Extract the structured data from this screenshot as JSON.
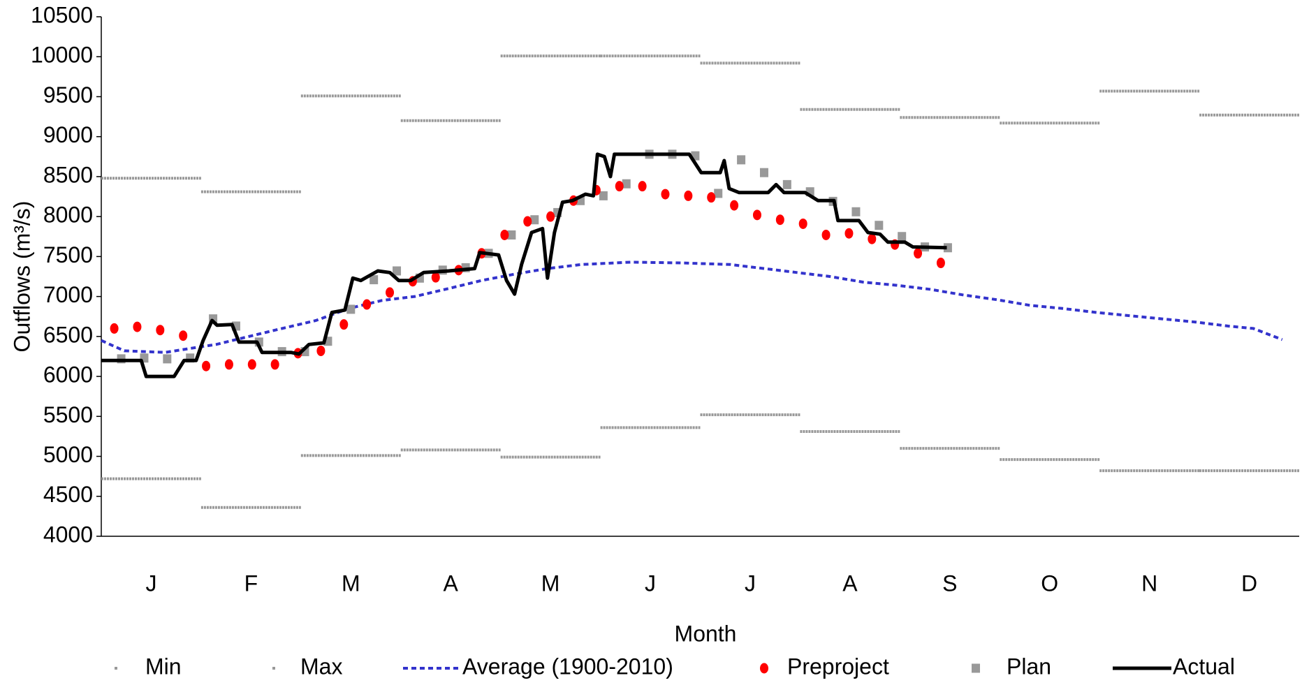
{
  "chart_data": {
    "type": "line",
    "x_label": "Month",
    "y_label": "Outflows (m³/s)",
    "xlim": [
      0,
      12
    ],
    "xticks": [
      {
        "value": 0.5,
        "label": "J"
      },
      {
        "value": 1.5,
        "label": "F"
      },
      {
        "value": 2.5,
        "label": "M"
      },
      {
        "value": 3.5,
        "label": "A"
      },
      {
        "value": 4.5,
        "label": "M"
      },
      {
        "value": 5.5,
        "label": "J"
      },
      {
        "value": 6.5,
        "label": "J"
      },
      {
        "value": 7.5,
        "label": "A"
      },
      {
        "value": 8.5,
        "label": "S"
      },
      {
        "value": 9.5,
        "label": "O"
      },
      {
        "value": 10.5,
        "label": "N"
      },
      {
        "value": 11.5,
        "label": "D"
      }
    ],
    "ylim": [
      4000,
      10500
    ],
    "yticks": [
      4000,
      4500,
      5000,
      5500,
      6000,
      6500,
      7000,
      7500,
      8000,
      8500,
      9000,
      9500,
      10000,
      10500
    ],
    "grid": false,
    "legend": "bottom",
    "series": [
      {
        "name": "Min",
        "color": "#999999",
        "style": "step",
        "x": [
          0,
          1,
          2,
          3,
          4,
          5,
          6,
          7,
          8,
          9,
          10,
          11
        ],
        "values": [
          4720,
          4360,
          5010,
          5080,
          4990,
          5360,
          5520,
          5310,
          5100,
          4960,
          4820,
          4820
        ]
      },
      {
        "name": "Max",
        "color": "#999999",
        "style": "step",
        "x": [
          0,
          1,
          2,
          3,
          4,
          5,
          6,
          7,
          8,
          9,
          10,
          11
        ],
        "values": [
          8480,
          8310,
          9510,
          9200,
          10010,
          10010,
          9920,
          9340,
          9240,
          9170,
          9570,
          9270
        ]
      },
      {
        "name": "Average (1900-2010)",
        "color": "#3333cc",
        "style": "dotted",
        "x": [
          0,
          0.23,
          0.64,
          0.89,
          1.15,
          1.48,
          1.81,
          2.15,
          2.48,
          2.81,
          3.14,
          3.48,
          3.81,
          4.14,
          4.47,
          4.81,
          5.31,
          5.8,
          6.3,
          6.64,
          6.97,
          7.3,
          7.63,
          7.97,
          8.3,
          8.63,
          8.97,
          9.3,
          9.63,
          9.97,
          10.3,
          10.63,
          10.96,
          11.29,
          11.54,
          11.83
        ],
        "values": [
          6450,
          6320,
          6300,
          6350,
          6400,
          6500,
          6600,
          6700,
          6850,
          6950,
          7000,
          7100,
          7200,
          7280,
          7350,
          7400,
          7430,
          7420,
          7400,
          7350,
          7300,
          7250,
          7180,
          7140,
          7090,
          7020,
          6960,
          6890,
          6850,
          6800,
          6760,
          6720,
          6680,
          6630,
          6600,
          6460
        ]
      },
      {
        "name": "Preproject",
        "color": "#ff0000",
        "style": "dot",
        "x": [
          0.13,
          0.36,
          0.59,
          0.82,
          1.05,
          1.28,
          1.51,
          1.74,
          1.97,
          2.2,
          2.43,
          2.66,
          2.89,
          3.12,
          3.35,
          3.58,
          3.81,
          4.04,
          4.27,
          4.5,
          4.73,
          4.96,
          5.19,
          5.42,
          5.65,
          5.88,
          6.11,
          6.34,
          6.57,
          6.8,
          7.03,
          7.26,
          7.49,
          7.72,
          7.95,
          8.18,
          8.41
        ],
        "values": [
          6600,
          6620,
          6580,
          6510,
          6130,
          6150,
          6150,
          6150,
          6290,
          6320,
          6650,
          6900,
          7050,
          7190,
          7240,
          7330,
          7540,
          7770,
          7940,
          8000,
          8200,
          8330,
          8380,
          8380,
          8280,
          8260,
          8240,
          8140,
          8020,
          7960,
          7910,
          7770,
          7790,
          7720,
          7650,
          7540,
          7420
        ]
      },
      {
        "name": "Plan",
        "color": "#999999",
        "style": "square",
        "x": [
          0.2,
          0.43,
          0.66,
          0.89,
          1.12,
          1.35,
          1.58,
          1.81,
          2.04,
          2.27,
          2.5,
          2.73,
          2.96,
          3.19,
          3.42,
          3.65,
          3.88,
          4.11,
          4.34,
          4.57,
          4.8,
          5.03,
          5.26,
          5.49,
          5.72,
          5.95,
          6.18,
          6.41,
          6.64,
          6.87,
          7.1,
          7.33,
          7.56,
          7.79,
          8.02,
          8.25,
          8.48
        ],
        "values": [
          6220,
          6230,
          6220,
          6230,
          6720,
          6630,
          6430,
          6310,
          6310,
          6440,
          6840,
          7210,
          7320,
          7230,
          7330,
          7360,
          7540,
          7770,
          7960,
          8050,
          8200,
          8260,
          8410,
          8780,
          8780,
          8760,
          8290,
          8710,
          8550,
          8400,
          8310,
          8190,
          8060,
          7890,
          7750,
          7620,
          7610
        ]
      },
      {
        "name": "Actual",
        "color": "#000000",
        "style": "line",
        "x": [
          0,
          0.4,
          0.45,
          0.73,
          0.83,
          0.95,
          1.02,
          1.11,
          1.16,
          1.31,
          1.38,
          1.56,
          1.61,
          1.9,
          1.98,
          2.08,
          2.23,
          2.31,
          2.44,
          2.52,
          2.6,
          2.77,
          2.89,
          2.98,
          3.1,
          3.23,
          3.48,
          3.74,
          3.79,
          3.98,
          4.06,
          4.14,
          4.21,
          4.31,
          4.42,
          4.47,
          4.54,
          4.62,
          4.72,
          4.85,
          4.93,
          4.97,
          5.04,
          5.1,
          5.14,
          5.89,
          6.01,
          6.2,
          6.24,
          6.29,
          6.39,
          6.68,
          6.76,
          6.84,
          7.05,
          7.18,
          7.34,
          7.38,
          7.59,
          7.68,
          7.8,
          7.88,
          8.05,
          8.13,
          8.47
        ],
        "values": [
          6200,
          6200,
          6000,
          6000,
          6200,
          6200,
          6450,
          6700,
          6640,
          6650,
          6430,
          6430,
          6300,
          6300,
          6280,
          6400,
          6420,
          6800,
          6830,
          7230,
          7200,
          7320,
          7300,
          7200,
          7200,
          7300,
          7320,
          7350,
          7550,
          7520,
          7200,
          7030,
          7400,
          7800,
          7850,
          7230,
          7800,
          8180,
          8200,
          8280,
          8260,
          8780,
          8750,
          8500,
          8780,
          8780,
          8550,
          8550,
          8700,
          8350,
          8300,
          8300,
          8400,
          8300,
          8300,
          8200,
          8200,
          7950,
          7950,
          7800,
          7780,
          7680,
          7680,
          7620,
          7610
        ]
      }
    ]
  }
}
